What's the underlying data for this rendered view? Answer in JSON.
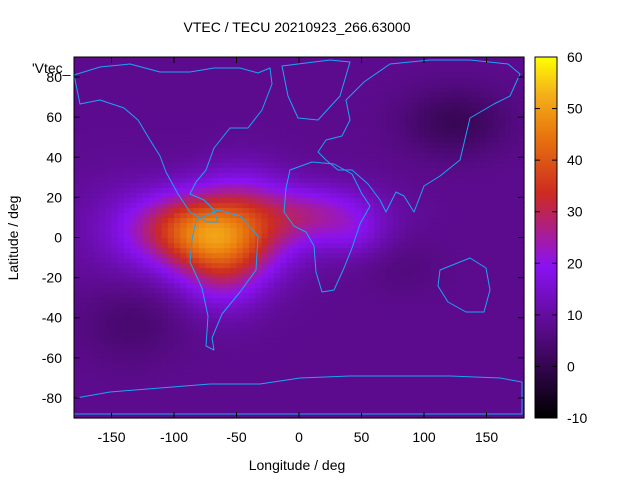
{
  "chart_data": {
    "type": "heatmap",
    "title": "VTEC / TECU 20210923_266.63000",
    "xlabel": "Longitude / deg",
    "ylabel": "Latitude / deg",
    "key_label": "'Vtec_",
    "xlim": [
      -180,
      180
    ],
    "ylim": [
      -90,
      90
    ],
    "xticks": [
      -150,
      -100,
      -50,
      0,
      50,
      100,
      150
    ],
    "yticks": [
      -80,
      -60,
      -40,
      -20,
      0,
      20,
      40,
      60,
      80
    ],
    "colorbar": {
      "range": [
        -10,
        60
      ],
      "ticks": [
        -10,
        0,
        10,
        20,
        30,
        40,
        50,
        60
      ],
      "palette_stops": [
        {
          "v": 0.0,
          "c": "#000000"
        },
        {
          "v": 0.25,
          "c": "#5a0b8a"
        },
        {
          "v": 0.42,
          "c": "#8a12f2"
        },
        {
          "v": 0.62,
          "c": "#cc2a22"
        },
        {
          "v": 0.78,
          "c": "#e8750e"
        },
        {
          "v": 0.9,
          "c": "#f5b21a"
        },
        {
          "v": 1.0,
          "c": "#ffff00"
        }
      ]
    },
    "field": {
      "background_tecu": 8,
      "features": [
        {
          "lon": -65,
          "lat": 2,
          "slon": 38,
          "slat": 14,
          "amp": 33
        },
        {
          "lon": -60,
          "lat": -18,
          "slon": 24,
          "slat": 14,
          "amp": 12
        },
        {
          "lon": -100,
          "lat": 6,
          "slon": 30,
          "slat": 12,
          "amp": 9
        },
        {
          "lon": -45,
          "lat": 24,
          "slon": 25,
          "slat": 12,
          "amp": 6
        },
        {
          "lon": 15,
          "lat": 12,
          "slon": 35,
          "slat": 10,
          "amp": 14
        },
        {
          "lon": 45,
          "lat": 0,
          "slon": 18,
          "slat": 8,
          "amp": 5
        },
        {
          "lon": 125,
          "lat": 58,
          "slon": 30,
          "slat": 12,
          "amp": -7
        },
        {
          "lon": -135,
          "lat": -42,
          "slon": 30,
          "slat": 14,
          "amp": -4
        },
        {
          "lon": 85,
          "lat": -15,
          "slon": 22,
          "slat": 10,
          "amp": -2
        },
        {
          "lon": -150,
          "lat": 5,
          "slon": 30,
          "slat": 20,
          "amp": 3
        }
      ]
    }
  }
}
